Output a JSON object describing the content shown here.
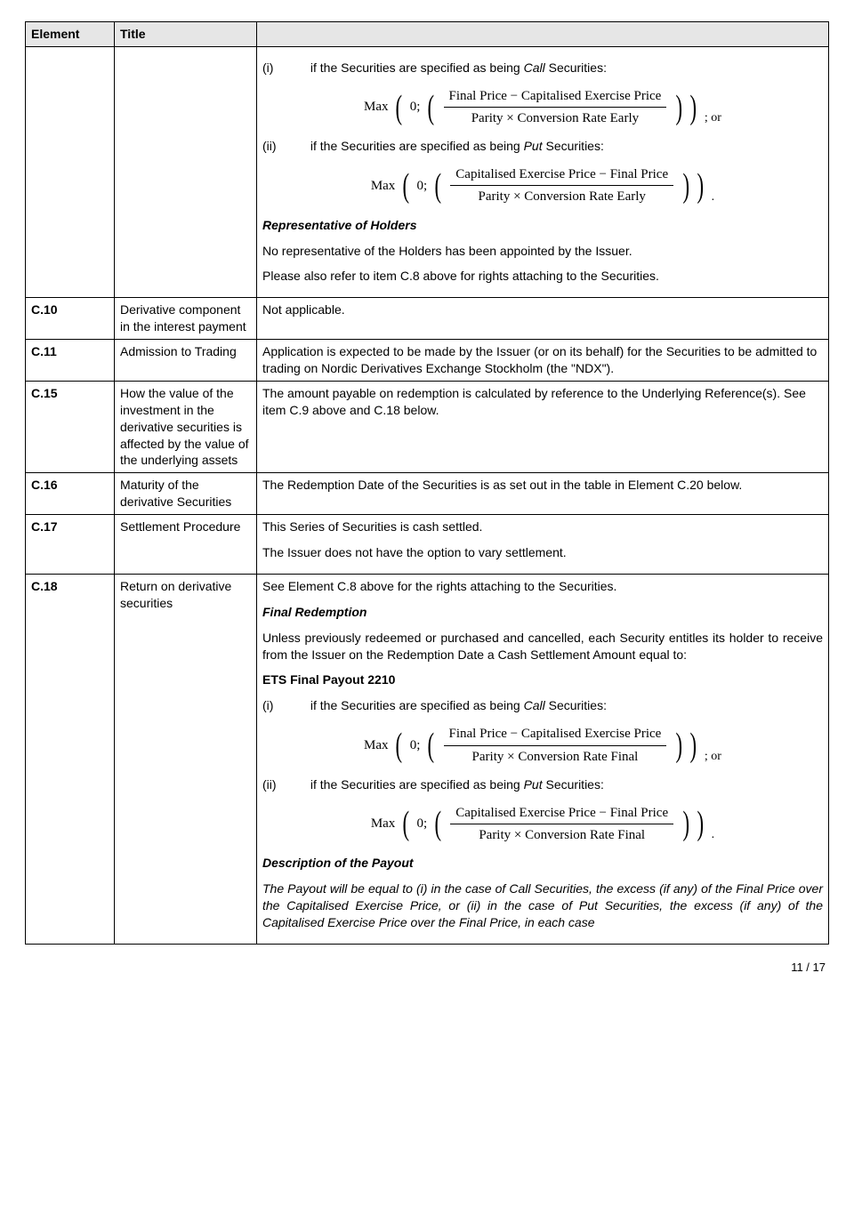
{
  "headers": {
    "element": "Element",
    "title": "Title"
  },
  "rows": {
    "r0": {
      "element": "",
      "title": "",
      "item_i_label": "(i)",
      "item_i_text_pre": "if the Securities are specified as being ",
      "item_i_text_em": "Call",
      "item_i_text_post": " Securities:",
      "formula_i": {
        "max": "Max",
        "zero": "0;",
        "num": "Final Price − Capitalised Exercise Price",
        "den": "Parity × Conversion Rate Early",
        "trail": "; or"
      },
      "item_ii_label": "(ii)",
      "item_ii_text_pre": "if the Securities are specified as being ",
      "item_ii_text_em": "Put",
      "item_ii_text_post": " Securities:",
      "formula_ii": {
        "max": "Max",
        "zero": "0;",
        "num": "Capitalised Exercise Price − Final Price",
        "den": "Parity × Conversion Rate Early",
        "trail": "."
      },
      "rep_heading": "Representative of Holders",
      "rep_text": "No representative of the Holders has been appointed by the Issuer.",
      "ref_text": "Please also refer to item C.8 above for rights attaching to the Securities."
    },
    "c10": {
      "element": "C.10",
      "title": "Derivative component in the interest payment",
      "text": "Not applicable."
    },
    "c11": {
      "element": "C.11",
      "title": "Admission to Trading",
      "text": "Application is expected to be made by the Issuer (or on its behalf) for the Securities to be admitted to trading on Nordic Derivatives Exchange Stockholm (the \"NDX\")."
    },
    "c15": {
      "element": "C.15",
      "title": "How the value of the investment in the derivative securities is affected by the value of the underlying assets",
      "text": "The amount payable on redemption is calculated by reference to the Underlying Reference(s). See item C.9 above and C.18 below."
    },
    "c16": {
      "element": "C.16",
      "title": "Maturity of the derivative Securities",
      "text": "The Redemption Date of the Securities is as set out in the table in Element C.20 below."
    },
    "c17": {
      "element": "C.17",
      "title": "Settlement Procedure",
      "text1": "This Series of Securities is cash settled.",
      "text2": "The Issuer does not have the option to vary settlement."
    },
    "c18": {
      "element": "C.18",
      "title": "Return on derivative securities",
      "intro": "See Element C.8 above for the rights attaching to the Securities.",
      "final_heading": "Final Redemption",
      "final_text": "Unless previously redeemed or purchased and cancelled, each Security entitles its holder to receive from the Issuer on the Redemption Date a Cash Settlement Amount equal to:",
      "ets_heading": "ETS Final Payout 2210",
      "item_i_label": "(i)",
      "item_i_text_pre": "if the Securities are specified as being ",
      "item_i_text_em": "Call",
      "item_i_text_post": " Securities:",
      "formula_i": {
        "max": "Max",
        "zero": "0;",
        "num": "Final Price − Capitalised Exercise Price",
        "den": "Parity × Conversion Rate Final",
        "trail": "; or"
      },
      "item_ii_label": "(ii)",
      "item_ii_text_pre": "if the Securities are specified as being ",
      "item_ii_text_em": "Put",
      "item_ii_text_post": " Securities:",
      "formula_ii": {
        "max": "Max",
        "zero": "0;",
        "num": "Capitalised Exercise Price − Final Price",
        "den": "Parity × Conversion Rate Final",
        "trail": "."
      },
      "desc_heading": "Description of the Payout",
      "desc_text": "The Payout will be equal to (i) in the case of Call Securities, the excess (if any) of the Final Price over the Capitalised Exercise Price, or (ii) in the case of Put Securities, the excess (if any) of the Capitalised Exercise Price over the Final Price, in each case"
    }
  },
  "footer": "11 / 17"
}
